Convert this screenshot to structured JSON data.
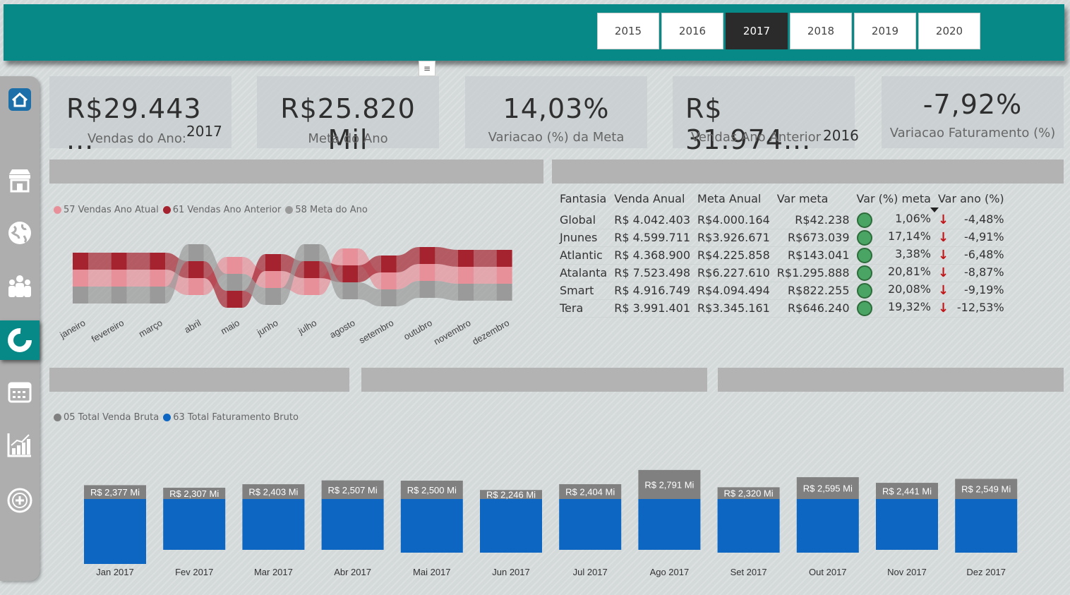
{
  "years": {
    "options": [
      "2015",
      "2016",
      "2017",
      "2018",
      "2019",
      "2020"
    ],
    "selected": "2017"
  },
  "filter_icon": "filter-icon",
  "sidebar": {
    "items": [
      {
        "icon": "home-icon"
      },
      {
        "icon": "store-icon"
      },
      {
        "icon": "globe-icon"
      },
      {
        "icon": "people-icon"
      },
      {
        "icon": "donut-chart-icon",
        "active": true
      },
      {
        "icon": "calendar-icon"
      },
      {
        "icon": "growth-chart-icon"
      },
      {
        "icon": "add-circle-icon"
      }
    ]
  },
  "kpis": [
    {
      "value": "R$29.443 ...",
      "label": "Vendas do Ano:",
      "year": "2017"
    },
    {
      "value": "R$25.820 Mil",
      "label": "Meta do Ano"
    },
    {
      "value": "14,03%",
      "label": "Variacao (%) da Meta"
    },
    {
      "value": "R$ 31.974...",
      "label": "Vendas Ano Anterior",
      "year": "2016"
    },
    {
      "value": "-7,92%",
      "label": "Variacao Faturamento (%)"
    }
  ],
  "ribbon_legend": [
    {
      "label": "57 Vendas Ano Atual",
      "color": "#e8909a"
    },
    {
      "label": "61 Vendas Ano Anterior",
      "color": "#a5232f"
    },
    {
      "label": "58 Meta do Ano",
      "color": "#9a9a9a"
    }
  ],
  "ribbon_months": [
    "janeiro",
    "fevereiro",
    "março",
    "abril",
    "maio",
    "junho",
    "julho",
    "agosto",
    "setembro",
    "outubro",
    "novembro",
    "dezembro"
  ],
  "table": {
    "headers": [
      "Fantasia",
      "Venda Anual",
      "Meta Anual",
      "Var meta",
      "Var (%) meta",
      "Var ano (%)"
    ],
    "rows": [
      {
        "name": "Global",
        "venda": "R$ 4.042.403",
        "meta": "R$4.000.164",
        "var": "R$42.238",
        "pct": "1,06%",
        "ano": "-4,48%"
      },
      {
        "name": "Jnunes",
        "venda": "R$ 4.599.711",
        "meta": "R$3.926.671",
        "var": "R$673.039",
        "pct": "17,14%",
        "ano": "-4,91%"
      },
      {
        "name": "Atlantic",
        "venda": "R$ 4.368.900",
        "meta": "R$4.225.858",
        "var": "R$143.041",
        "pct": "3,38%",
        "ano": "-6,48%"
      },
      {
        "name": "Atalanta",
        "venda": "R$ 7.523.498",
        "meta": "R$6.227.610",
        "var": "R$1.295.888",
        "pct": "20,81%",
        "ano": "-8,87%"
      },
      {
        "name": "Smart",
        "venda": "R$ 4.916.749",
        "meta": "R$4.094.494",
        "var": "R$822.255",
        "pct": "20,08%",
        "ano": "-9,19%"
      },
      {
        "name": "Tera",
        "venda": "R$ 3.991.401",
        "meta": "R$3.345.161",
        "var": "R$646.240",
        "pct": "19,32%",
        "ano": "-12,53%"
      }
    ]
  },
  "chart_data": {
    "type": "bar",
    "categories": [
      "Jan 2017",
      "Fev 2017",
      "Mar 2017",
      "Abr 2017",
      "Mai 2017",
      "Jun 2017",
      "Jul 2017",
      "Ago 2017",
      "Set 2017",
      "Out 2017",
      "Nov 2017",
      "Dez 2017"
    ],
    "series": [
      {
        "name": "05 Total Venda Bruta",
        "color": "#808080",
        "values": [
          2.377,
          2.307,
          2.403,
          2.507,
          2.5,
          2.246,
          2.404,
          2.791,
          2.32,
          2.595,
          2.441,
          2.549
        ],
        "labels": [
          "R$ 2,377 Mi",
          "R$ 2,307 Mi",
          "R$ 2,403 Mi",
          "R$ 2,507 Mi",
          "R$ 2,500 Mi",
          "R$ 2,246 Mi",
          "R$ 2,404 Mi",
          "R$ 2,791 Mi",
          "R$ 2,320 Mi",
          "R$ 2,595 Mi",
          "R$ 2,441 Mi",
          "R$ 2,549 Mi"
        ]
      },
      {
        "name": "63 Total Faturamento Bruto",
        "color": "#0d67c2",
        "values": [
          2.3,
          1.8,
          1.8,
          1.8,
          1.9,
          1.9,
          1.8,
          1.8,
          1.9,
          1.9,
          1.8,
          1.9
        ]
      }
    ]
  }
}
